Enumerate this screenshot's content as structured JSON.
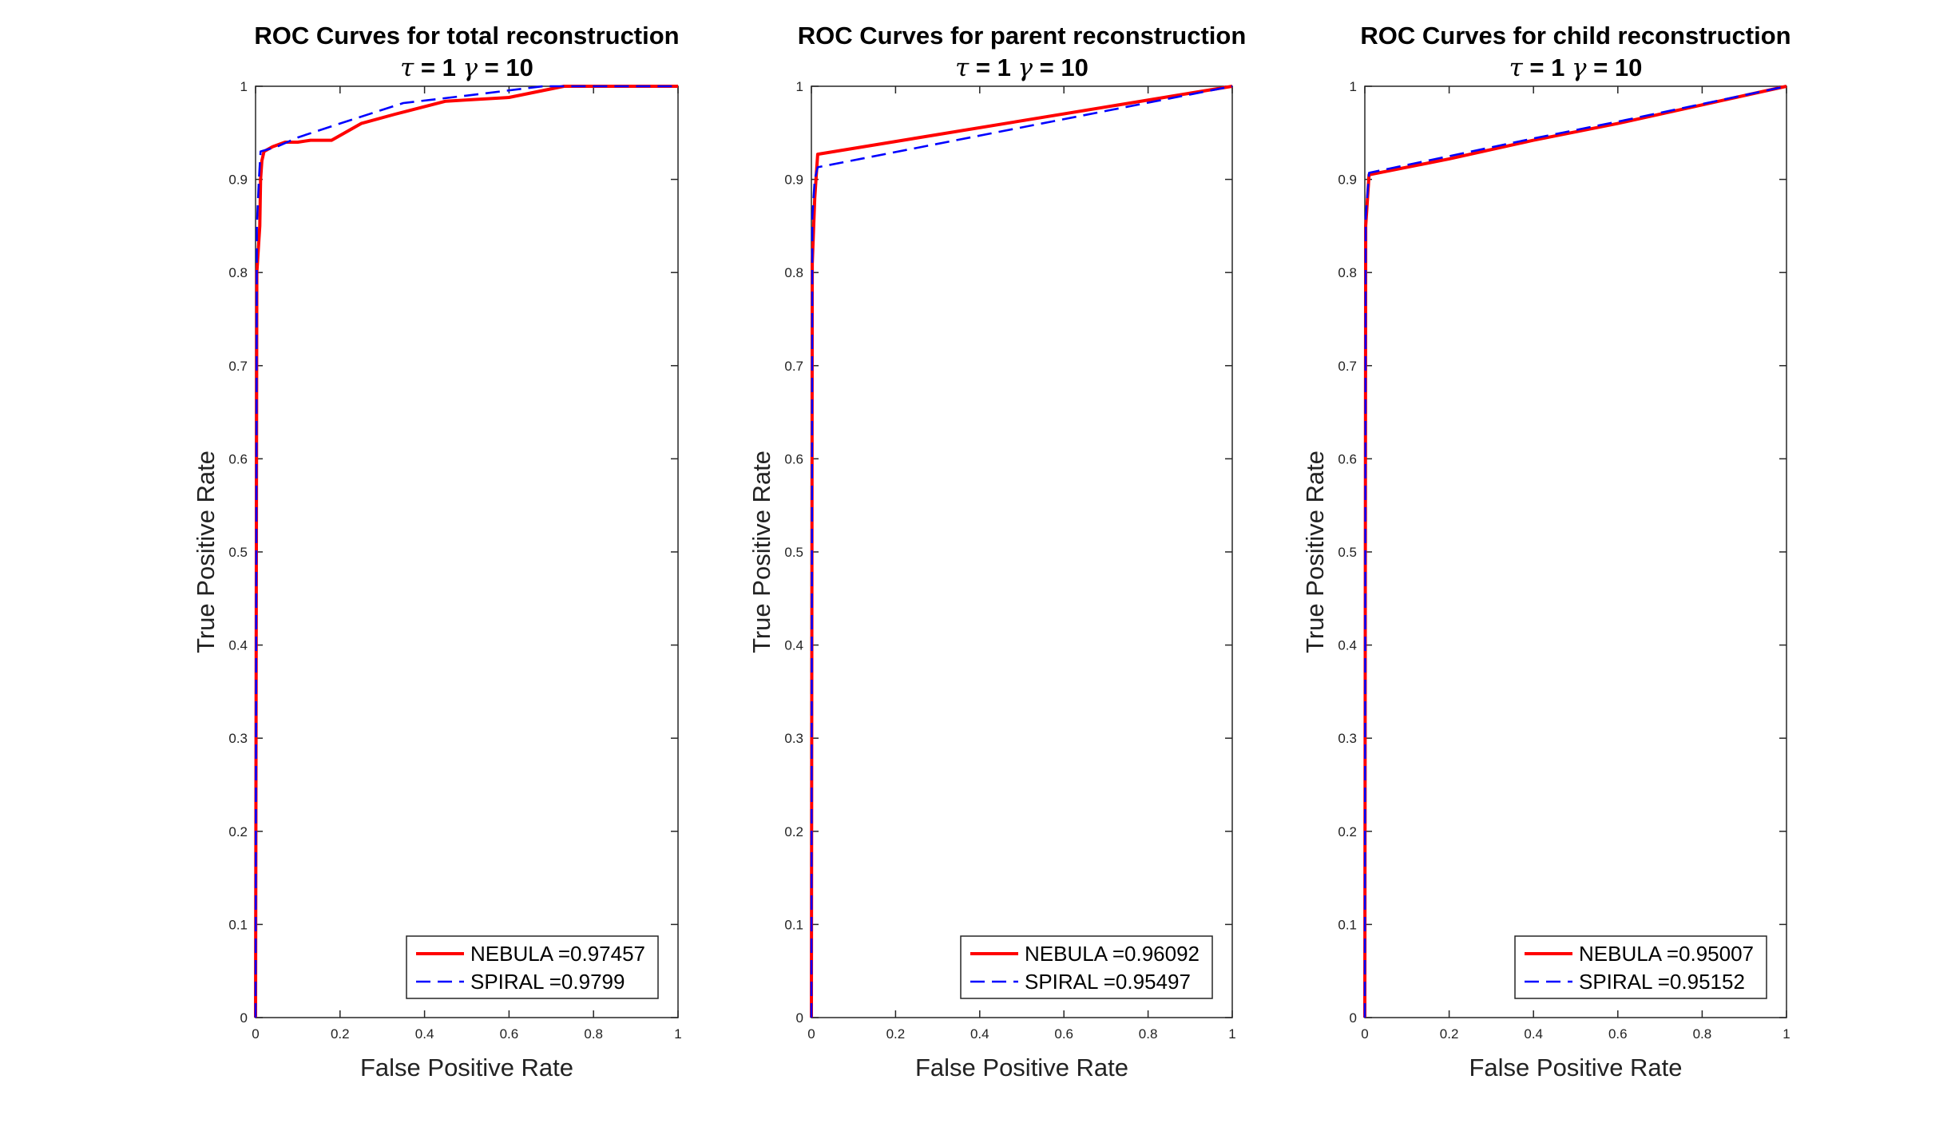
{
  "chart_data": [
    {
      "type": "line",
      "title": "ROC Curves for total reconstruction",
      "subtitle": {
        "tau_symbol": "τ",
        "tau_text": " = 1 ",
        "gamma_symbol": "γ",
        "gamma_text": " = 10"
      },
      "xlabel": "False Positive Rate",
      "ylabel": "True Positive Rate",
      "xlim": [
        0,
        1
      ],
      "ylim": [
        0,
        1
      ],
      "xticks": [
        "0",
        "0.2",
        "0.4",
        "0.6",
        "0.8",
        "1"
      ],
      "yticks": [
        "0",
        "0.1",
        "0.2",
        "0.3",
        "0.4",
        "0.5",
        "0.6",
        "0.7",
        "0.8",
        "0.9",
        "1"
      ],
      "grid": false,
      "legend_position": "bottom-right",
      "series": [
        {
          "name": "NEBULA",
          "legend": "NEBULA =0.97457",
          "color": "#ff0000",
          "style": "solid",
          "points": [
            [
              0,
              0
            ],
            [
              0.003,
              0.8
            ],
            [
              0.01,
              0.85
            ],
            [
              0.012,
              0.9
            ],
            [
              0.015,
              0.92
            ],
            [
              0.02,
              0.93
            ],
            [
              0.04,
              0.935
            ],
            [
              0.07,
              0.94
            ],
            [
              0.1,
              0.94
            ],
            [
              0.13,
              0.942
            ],
            [
              0.18,
              0.942
            ],
            [
              0.25,
              0.96
            ],
            [
              0.33,
              0.97
            ],
            [
              0.45,
              0.984
            ],
            [
              0.6,
              0.988
            ],
            [
              0.73,
              1
            ],
            [
              1,
              1
            ]
          ]
        },
        {
          "name": "SPIRAL",
          "legend": "SPIRAL  =0.9799",
          "color": "#0000ff",
          "style": "dashed",
          "points": [
            [
              0,
              0
            ],
            [
              0.003,
              0.85
            ],
            [
              0.008,
              0.9
            ],
            [
              0.012,
              0.93
            ],
            [
              0.05,
              0.935
            ],
            [
              0.1,
              0.945
            ],
            [
              0.2,
              0.96
            ],
            [
              0.35,
              0.982
            ],
            [
              0.5,
              0.99
            ],
            [
              0.68,
              1
            ],
            [
              1,
              1
            ]
          ]
        }
      ]
    },
    {
      "type": "line",
      "title": "ROC Curves for parent reconstruction",
      "subtitle": {
        "tau_symbol": "τ",
        "tau_text": " = 1 ",
        "gamma_symbol": "γ",
        "gamma_text": " = 10"
      },
      "xlabel": "False Positive Rate",
      "ylabel": "True Positive Rate",
      "xlim": [
        0,
        1
      ],
      "ylim": [
        0,
        1
      ],
      "xticks": [
        "0",
        "0.2",
        "0.4",
        "0.6",
        "0.8",
        "1"
      ],
      "yticks": [
        "0",
        "0.1",
        "0.2",
        "0.3",
        "0.4",
        "0.5",
        "0.6",
        "0.7",
        "0.8",
        "0.9",
        "1"
      ],
      "grid": false,
      "legend_position": "bottom-right",
      "series": [
        {
          "name": "NEBULA",
          "legend": "NEBULA =0.96092",
          "color": "#ff0000",
          "style": "solid",
          "points": [
            [
              0,
              0
            ],
            [
              0.002,
              0.81
            ],
            [
              0.008,
              0.88
            ],
            [
              0.015,
              0.927
            ],
            [
              1,
              1
            ]
          ]
        },
        {
          "name": "SPIRAL",
          "legend": "SPIRAL  =0.95497",
          "color": "#0000ff",
          "style": "dashed",
          "points": [
            [
              0,
              0
            ],
            [
              0.002,
              0.86
            ],
            [
              0.008,
              0.9
            ],
            [
              0.015,
              0.913
            ],
            [
              1,
              1
            ]
          ]
        }
      ]
    },
    {
      "type": "line",
      "title": "ROC Curves for child reconstruction",
      "subtitle": {
        "tau_symbol": "τ",
        "tau_text": " = 1 ",
        "gamma_symbol": "γ",
        "gamma_text": " = 10"
      },
      "xlabel": "False Positive Rate",
      "ylabel": "True Positive Rate",
      "xlim": [
        0,
        1
      ],
      "ylim": [
        0,
        1
      ],
      "xticks": [
        "0",
        "0.2",
        "0.4",
        "0.6",
        "0.8",
        "1"
      ],
      "yticks": [
        "0",
        "0.1",
        "0.2",
        "0.3",
        "0.4",
        "0.5",
        "0.6",
        "0.7",
        "0.8",
        "0.9",
        "1"
      ],
      "grid": false,
      "legend_position": "bottom-right",
      "series": [
        {
          "name": "NEBULA",
          "legend": "NEBULA =0.95007",
          "color": "#ff0000",
          "style": "solid",
          "points": [
            [
              0,
              0
            ],
            [
              0.002,
              0.85
            ],
            [
              0.01,
              0.905
            ],
            [
              0.2,
              0.922
            ],
            [
              0.4,
              0.942
            ],
            [
              0.6,
              0.96
            ],
            [
              0.8,
              0.98
            ],
            [
              1,
              1
            ]
          ]
        },
        {
          "name": "SPIRAL",
          "legend": "SPIRAL  =0.95152",
          "color": "#0000ff",
          "style": "dashed",
          "points": [
            [
              0,
              0
            ],
            [
              0.002,
              0.86
            ],
            [
              0.01,
              0.907
            ],
            [
              0.2,
              0.925
            ],
            [
              0.4,
              0.944
            ],
            [
              0.6,
              0.962
            ],
            [
              0.8,
              0.981
            ],
            [
              1,
              1
            ]
          ]
        }
      ]
    }
  ]
}
